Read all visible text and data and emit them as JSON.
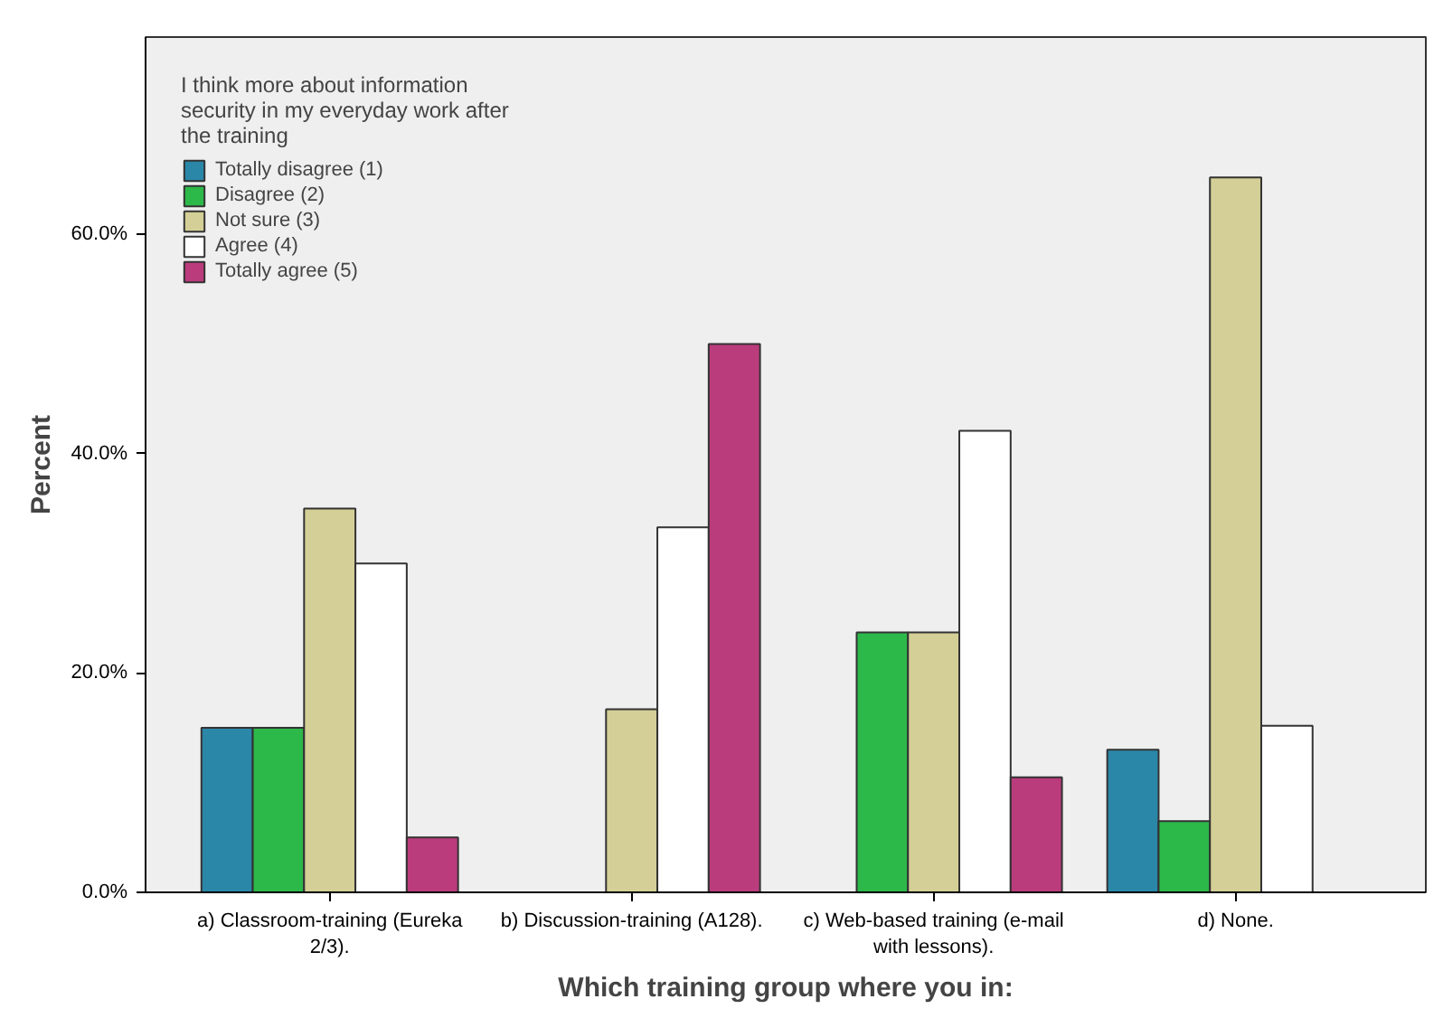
{
  "chart_data": {
    "type": "bar",
    "legend_title": "I think more about information security in my everyday work after the training",
    "xlabel": "Which training group where you in:",
    "ylabel": "Percent",
    "categories": [
      "a) Classroom-training (Eureka 2/3).",
      "b) Discussion-training (A128).",
      "c) Web-based training (e-mail with lessons).",
      "d) None."
    ],
    "series": [
      {
        "name": "Totally disagree (1)",
        "color": "#2a87a8",
        "values": [
          15.0,
          null,
          null,
          13.0
        ]
      },
      {
        "name": "Disagree (2)",
        "color": "#2db84a",
        "values": [
          15.0,
          null,
          23.7,
          6.5
        ]
      },
      {
        "name": "Not sure (3)",
        "color": "#d4cf96",
        "values": [
          35.0,
          16.7,
          23.7,
          65.2
        ]
      },
      {
        "name": "Agree (4)",
        "color": "#ffffff",
        "values": [
          30.0,
          33.3,
          42.1,
          15.2
        ]
      },
      {
        "name": "Totally agree (5)",
        "color": "#bb3c7c",
        "values": [
          5.0,
          50.0,
          10.5,
          null
        ]
      }
    ],
    "ylim": [
      0,
      78
    ],
    "yticks": [
      {
        "value": 0,
        "label": "0.0%"
      },
      {
        "value": 20,
        "label": "20.0%"
      },
      {
        "value": 40,
        "label": "40.0%"
      },
      {
        "value": 60,
        "label": "60.0%"
      }
    ],
    "grid": false,
    "legend": "top left"
  }
}
